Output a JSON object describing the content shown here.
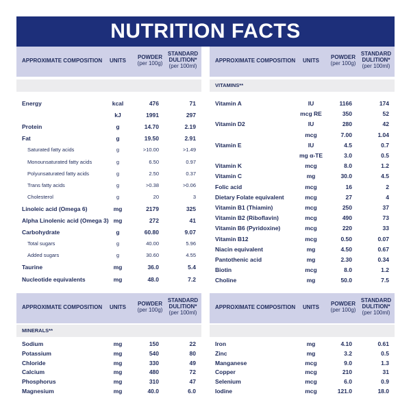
{
  "title": "NUTRITION FACTS",
  "header": {
    "composition": "APPROXIMATE COMPOSITION",
    "units": "UNITS",
    "powder": "POWDER",
    "powder_sub": "(per 100g)",
    "standard": "STANDARD",
    "dilution": "DULITION*",
    "dilution_sub": "(per 100ml)"
  },
  "vitamins_label": "VITAMINS**",
  "minerals_label": "MINERALS**",
  "energy_rows": [
    {
      "name": "Energy",
      "unit": "kcal",
      "powder": "476",
      "std": "71",
      "sub": false
    },
    {
      "name": "",
      "unit": "kJ",
      "powder": "1991",
      "std": "297",
      "sub": false
    },
    {
      "name": "Protein",
      "unit": "g",
      "powder": "14.70",
      "std": "2.19",
      "sub": false
    },
    {
      "name": "Fat",
      "unit": "g",
      "powder": "19.50",
      "std": "2.91",
      "sub": false
    },
    {
      "name": "Saturated fatty acids",
      "unit": "g",
      "powder": ">10.00",
      "std": ">1.49",
      "sub": true
    },
    {
      "name": "Monounsaturated fatty acids",
      "unit": "g",
      "powder": "6.50",
      "std": "0.97",
      "sub": true
    },
    {
      "name": "Polyunsaturated fatty acids",
      "unit": "g",
      "powder": "2.50",
      "std": "0.37",
      "sub": true
    },
    {
      "name": "Trans fatty acids",
      "unit": "g",
      "powder": ">0.38",
      "std": ">0.06",
      "sub": true
    },
    {
      "name": "Cholesterol",
      "unit": "g",
      "powder": "20",
      "std": "3",
      "sub": true
    },
    {
      "name": "Linoleic acid (Omega 6)",
      "unit": "mg",
      "powder": "2179",
      "std": "325",
      "sub": false
    },
    {
      "name": "Alpha Linolenic acid (Omega 3)",
      "unit": "mg",
      "powder": "272",
      "std": "41",
      "sub": false
    },
    {
      "name": "Carbohydrate",
      "unit": "g",
      "powder": "60.80",
      "std": "9.07",
      "sub": false
    },
    {
      "name": "Total sugars",
      "unit": "g",
      "powder": "40.00",
      "std": "5.96",
      "sub": true
    },
    {
      "name": "Added sugars",
      "unit": "g",
      "powder": "30.60",
      "std": "4.55",
      "sub": true
    },
    {
      "name": "Taurine",
      "unit": "mg",
      "powder": "36.0",
      "std": "5.4",
      "sub": false
    },
    {
      "name": "Nucleotide equivalents",
      "unit": "mg",
      "powder": "48.0",
      "std": "7.2",
      "sub": false
    }
  ],
  "vitamin_rows": [
    {
      "name": "Vitamin A",
      "unit": "IU",
      "powder": "1166",
      "std": "174"
    },
    {
      "name": "",
      "unit": "mcg RE",
      "powder": "350",
      "std": "52"
    },
    {
      "name": "Vitamin D2",
      "unit": "IU",
      "powder": "280",
      "std": "42"
    },
    {
      "name": "",
      "unit": "mcg",
      "powder": "7.00",
      "std": "1.04"
    },
    {
      "name": "Vitamin E",
      "unit": "IU",
      "powder": "4.5",
      "std": "0.7"
    },
    {
      "name": "",
      "unit": "mg α-TE",
      "powder": "3.0",
      "std": "0.5"
    },
    {
      "name": "Vitamin K",
      "unit": "mcg",
      "powder": "8.0",
      "std": "1.2"
    },
    {
      "name": "Vitamin C",
      "unit": "mg",
      "powder": "30.0",
      "std": "4.5"
    },
    {
      "name": "Folic acid",
      "unit": "mcg",
      "powder": "16",
      "std": "2"
    },
    {
      "name": "Dietary Folate equivalent",
      "unit": "mcg",
      "powder": "27",
      "std": "4"
    },
    {
      "name": "Vitamin B1 (Thiamin)",
      "unit": "mcg",
      "powder": "250",
      "std": "37"
    },
    {
      "name": "Vitamin B2 (Riboflavin)",
      "unit": "mcg",
      "powder": "490",
      "std": "73"
    },
    {
      "name": "Vitamin B6 (Pyridoxine)",
      "unit": "mcg",
      "powder": "220",
      "std": "33"
    },
    {
      "name": "Vitamin B12",
      "unit": "mcg",
      "powder": "0.50",
      "std": "0.07"
    },
    {
      "name": "Niacin equivalent",
      "unit": "mg",
      "powder": "4.50",
      "std": "0.67"
    },
    {
      "name": "Pantothenic acid",
      "unit": "mg",
      "powder": "2.30",
      "std": "0.34"
    },
    {
      "name": "Biotin",
      "unit": "mcg",
      "powder": "8.0",
      "std": "1.2"
    },
    {
      "name": "Choline",
      "unit": "mg",
      "powder": "50.0",
      "std": "7.5"
    }
  ],
  "mineral_rows_left": [
    {
      "name": "Sodium",
      "unit": "mg",
      "powder": "150",
      "std": "22"
    },
    {
      "name": "Potassium",
      "unit": "mg",
      "powder": "540",
      "std": "80"
    },
    {
      "name": "Chloride",
      "unit": "mg",
      "powder": "330",
      "std": "49"
    },
    {
      "name": "Calcium",
      "unit": "mg",
      "powder": "480",
      "std": "72"
    },
    {
      "name": "Phosphorus",
      "unit": "mg",
      "powder": "310",
      "std": "47"
    },
    {
      "name": "Magnesium",
      "unit": "mg",
      "powder": "40.0",
      "std": "6.0"
    }
  ],
  "mineral_rows_right": [
    {
      "name": "Iron",
      "unit": "mg",
      "powder": "4.10",
      "std": "0.61"
    },
    {
      "name": "Zinc",
      "unit": "mg",
      "powder": "3.2",
      "std": "0.5"
    },
    {
      "name": "Manganese",
      "unit": "mcg",
      "powder": "9.0",
      "std": "1.3"
    },
    {
      "name": "Copper",
      "unit": "mcg",
      "powder": "210",
      "std": "31"
    },
    {
      "name": "Selenium",
      "unit": "mcg",
      "powder": "6.0",
      "std": "0.9"
    },
    {
      "name": "Iodine",
      "unit": "mcg",
      "powder": "121.0",
      "std": "18.0"
    }
  ]
}
